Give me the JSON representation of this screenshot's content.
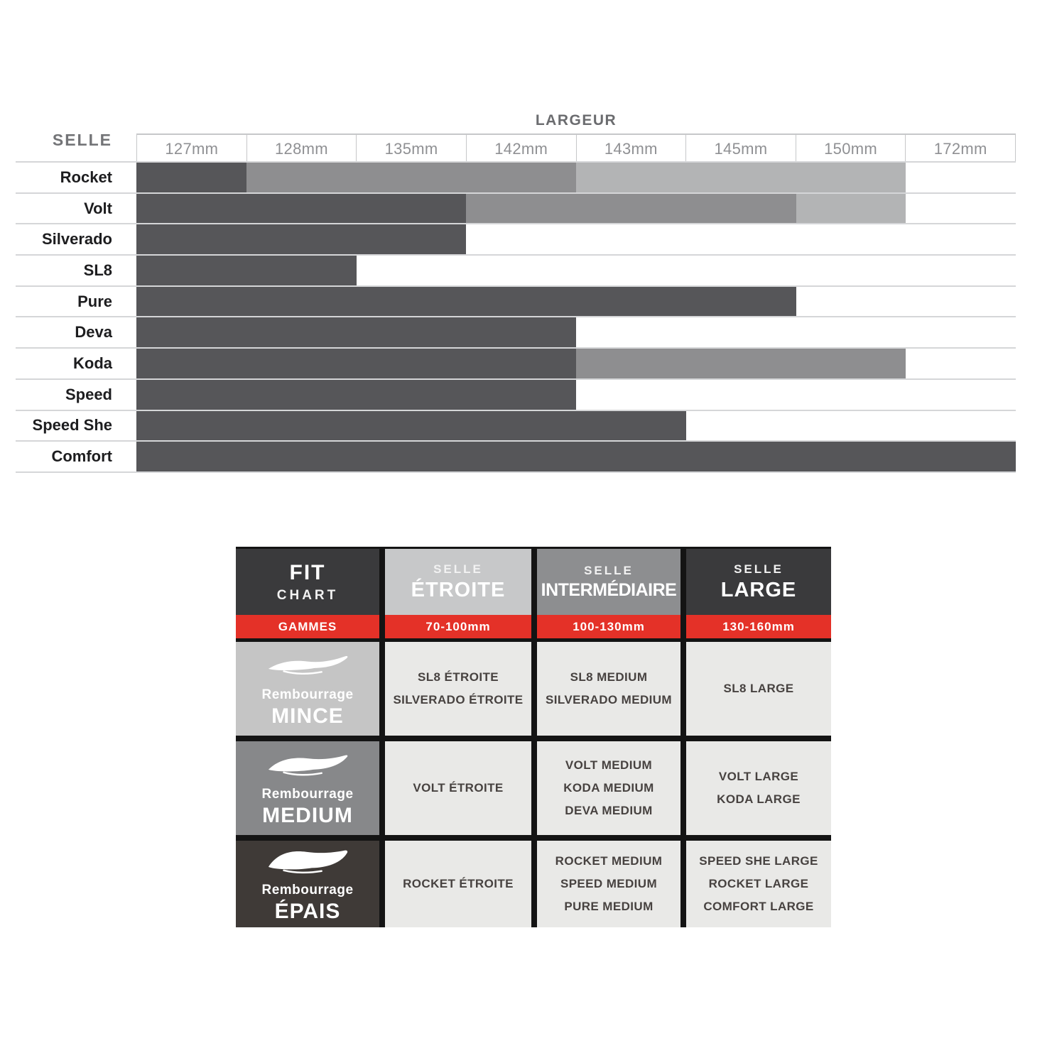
{
  "chart_data": {
    "type": "bar",
    "title": "LARGEUR",
    "row_axis_label": "SELLE",
    "categories": [
      "127mm",
      "128mm",
      "135mm",
      "142mm",
      "143mm",
      "145mm",
      "150mm",
      "172mm"
    ],
    "legend_position": "none",
    "grid": "horizontal-lines",
    "colors": {
      "dark": "#565659",
      "medium": "#8e8e90",
      "light": "#b3b4b5"
    },
    "rows": [
      {
        "label": "Rocket",
        "segments": [
          {
            "shade": "dark",
            "columns": [
              "127mm"
            ]
          },
          {
            "shade": "medium",
            "columns": [
              "128mm",
              "135mm",
              "142mm"
            ]
          },
          {
            "shade": "light",
            "columns": [
              "143mm",
              "145mm",
              "150mm"
            ]
          }
        ]
      },
      {
        "label": "Volt",
        "segments": [
          {
            "shade": "dark",
            "columns": [
              "127mm",
              "128mm",
              "135mm"
            ]
          },
          {
            "shade": "medium",
            "columns": [
              "142mm",
              "143mm",
              "145mm"
            ]
          },
          {
            "shade": "light",
            "columns": [
              "150mm"
            ]
          }
        ]
      },
      {
        "label": "Silverado",
        "segments": [
          {
            "shade": "dark",
            "columns": [
              "127mm",
              "128mm",
              "135mm"
            ]
          }
        ]
      },
      {
        "label": "SL8",
        "segments": [
          {
            "shade": "dark",
            "columns": [
              "127mm",
              "128mm"
            ]
          }
        ]
      },
      {
        "label": "Pure",
        "segments": [
          {
            "shade": "dark",
            "columns": [
              "127mm",
              "128mm",
              "135mm",
              "142mm",
              "143mm",
              "145mm"
            ]
          }
        ]
      },
      {
        "label": "Deva",
        "segments": [
          {
            "shade": "dark",
            "columns": [
              "127mm",
              "128mm",
              "135mm",
              "142mm"
            ]
          }
        ]
      },
      {
        "label": "Koda",
        "segments": [
          {
            "shade": "dark",
            "columns": [
              "127mm",
              "128mm",
              "135mm",
              "142mm"
            ]
          },
          {
            "shade": "medium",
            "columns": [
              "143mm",
              "145mm",
              "150mm"
            ]
          }
        ]
      },
      {
        "label": "Speed",
        "segments": [
          {
            "shade": "dark",
            "columns": [
              "127mm",
              "128mm",
              "135mm",
              "142mm"
            ]
          }
        ]
      },
      {
        "label": "Speed She",
        "segments": [
          {
            "shade": "dark",
            "columns": [
              "127mm",
              "128mm",
              "135mm",
              "142mm",
              "143mm"
            ]
          }
        ]
      },
      {
        "label": "Comfort",
        "segments": [
          {
            "shade": "dark",
            "columns": [
              "127mm",
              "128mm",
              "135mm",
              "142mm",
              "143mm",
              "145mm",
              "150mm",
              "172mm"
            ]
          }
        ]
      }
    ]
  },
  "fit_chart": {
    "title_cell": {
      "line1": "FIT",
      "line2": "CHART",
      "bg": "#3a3a3c"
    },
    "columns": [
      {
        "label_small": "SELLE",
        "label_big": "ÉTROITE",
        "range": "70-100mm",
        "bg": "#c7c8c9"
      },
      {
        "label_small": "SELLE",
        "label_big": "INTERMÉDIAIRE",
        "range": "100-130mm",
        "bg": "#8d8e90"
      },
      {
        "label_small": "SELLE",
        "label_big": "LARGE",
        "range": "130-160mm",
        "bg": "#3a3a3c"
      }
    ],
    "gammes_label": "GAMMES",
    "accent_red": "#e43128",
    "rows": [
      {
        "icon": "saddle-thin-icon",
        "label_top": "Rembourrage",
        "label_main": "MINCE",
        "bg": "#c5c5c5",
        "cells": [
          [
            "SL8 ÉTROITE",
            "SILVERADO ÉTROITE"
          ],
          [
            "SL8 MEDIUM",
            "SILVERADO MEDIUM"
          ],
          [
            "SL8 LARGE"
          ]
        ]
      },
      {
        "icon": "saddle-medium-icon",
        "label_top": "Rembourrage",
        "label_main": "MEDIUM",
        "bg": "#87888a",
        "cells": [
          [
            "VOLT ÉTROITE"
          ],
          [
            "VOLT MEDIUM",
            "KODA MEDIUM",
            "DEVA MEDIUM"
          ],
          [
            "VOLT LARGE",
            "KODA LARGE"
          ]
        ]
      },
      {
        "icon": "saddle-thick-icon",
        "label_top": "Rembourrage",
        "label_main": "ÉPAIS",
        "bg": "#3f3a37",
        "cells": [
          [
            "ROCKET ÉTROITE"
          ],
          [
            "ROCKET MEDIUM",
            "SPEED MEDIUM",
            "PURE MEDIUM"
          ],
          [
            "SPEED SHE LARGE",
            "ROCKET LARGE",
            "COMFORT LARGE"
          ]
        ]
      }
    ]
  }
}
